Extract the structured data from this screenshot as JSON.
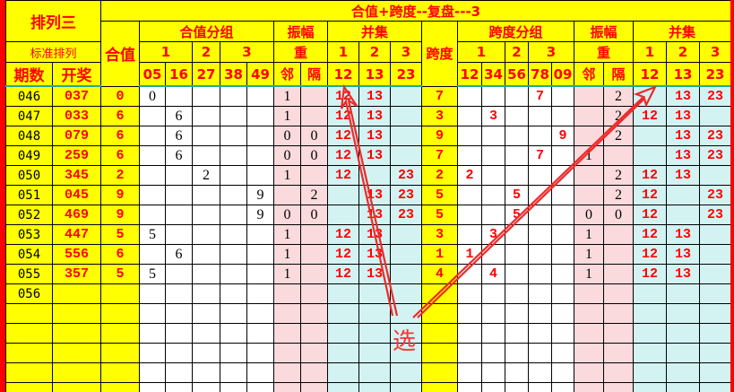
{
  "header": {
    "lottery": "排列三",
    "standard": "标准排列",
    "period": "期数",
    "draw": "开奖",
    "sum": "合值",
    "title": "合值+跨度--复盘---3",
    "sum_group": "合值分组",
    "sum_group_sub": [
      "1",
      "2",
      "3"
    ],
    "sum_group_cols": [
      "05",
      "16",
      "27",
      "38",
      "49"
    ],
    "amplitude": "振幅",
    "repeat": "重",
    "amp_cols": [
      "邻",
      "隔"
    ],
    "union": "并集",
    "union_sub": [
      "1",
      "2",
      "3"
    ],
    "union_cols": [
      "12",
      "13",
      "23"
    ],
    "span": "跨度",
    "span_group": "跨度分组",
    "span_group_sub": [
      "1",
      "2",
      "3"
    ],
    "span_group_cols": [
      "12",
      "34",
      "56",
      "78",
      "09"
    ]
  },
  "rows": [
    {
      "period": "046",
      "draw": "037",
      "sum": "0",
      "sg": [
        "0",
        "",
        "",
        "",
        ""
      ],
      "amp": [
        "1",
        ""
      ],
      "un": [
        "12",
        "13",
        ""
      ],
      "span": "7",
      "spg": [
        "",
        "",
        "",
        "7",
        ""
      ],
      "amp2": [
        "",
        "2"
      ],
      "un2": [
        "",
        "13",
        "23"
      ]
    },
    {
      "period": "047",
      "draw": "033",
      "sum": "6",
      "sg": [
        "",
        "6",
        "",
        "",
        ""
      ],
      "amp": [
        "1",
        ""
      ],
      "un": [
        "12",
        "13",
        ""
      ],
      "span": "3",
      "spg": [
        "",
        "3",
        "",
        "",
        ""
      ],
      "amp2": [
        "",
        "2"
      ],
      "un2": [
        "12",
        "13",
        ""
      ]
    },
    {
      "period": "048",
      "draw": "079",
      "sum": "6",
      "sg": [
        "",
        "6",
        "",
        "",
        ""
      ],
      "amp": [
        "0",
        "0"
      ],
      "un": [
        "12",
        "13",
        ""
      ],
      "span": "9",
      "spg": [
        "",
        "",
        "",
        "",
        "9"
      ],
      "amp2": [
        "",
        "2"
      ],
      "un2": [
        "",
        "13",
        "23"
      ]
    },
    {
      "period": "049",
      "draw": "259",
      "sum": "6",
      "sg": [
        "",
        "6",
        "",
        "",
        ""
      ],
      "amp": [
        "0",
        "0"
      ],
      "un": [
        "12",
        "13",
        ""
      ],
      "span": "7",
      "spg": [
        "",
        "",
        "",
        "7",
        ""
      ],
      "amp2": [
        "1",
        ""
      ],
      "un2": [
        "",
        "13",
        "23"
      ]
    },
    {
      "period": "050",
      "draw": "345",
      "sum": "2",
      "sg": [
        "",
        "",
        "2",
        "",
        ""
      ],
      "amp": [
        "1",
        ""
      ],
      "un": [
        "12",
        "",
        "23"
      ],
      "span": "2",
      "spg": [
        "2",
        "",
        "",
        "",
        ""
      ],
      "amp2": [
        "",
        "2"
      ],
      "un2": [
        "12",
        "13",
        ""
      ]
    },
    {
      "period": "051",
      "draw": "045",
      "sum": "9",
      "sg": [
        "",
        "",
        "",
        "",
        "9"
      ],
      "amp": [
        "",
        "2"
      ],
      "un": [
        "",
        "13",
        "23"
      ],
      "span": "5",
      "spg": [
        "",
        "",
        "5",
        "",
        ""
      ],
      "amp2": [
        "",
        "2"
      ],
      "un2": [
        "12",
        "",
        "23"
      ]
    },
    {
      "period": "052",
      "draw": "469",
      "sum": "9",
      "sg": [
        "",
        "",
        "",
        "",
        "9"
      ],
      "amp": [
        "0",
        "0"
      ],
      "un": [
        "",
        "13",
        "23"
      ],
      "span": "5",
      "spg": [
        "",
        "",
        "5",
        "",
        ""
      ],
      "amp2": [
        "0",
        "0"
      ],
      "un2": [
        "12",
        "",
        "23"
      ]
    },
    {
      "period": "053",
      "draw": "447",
      "sum": "5",
      "sg": [
        "5",
        "",
        "",
        "",
        ""
      ],
      "amp": [
        "1",
        ""
      ],
      "un": [
        "12",
        "13",
        ""
      ],
      "span": "3",
      "spg": [
        "",
        "3",
        "",
        "",
        ""
      ],
      "amp2": [
        "1",
        ""
      ],
      "un2": [
        "12",
        "13",
        ""
      ]
    },
    {
      "period": "054",
      "draw": "556",
      "sum": "6",
      "sg": [
        "",
        "6",
        "",
        "",
        ""
      ],
      "amp": [
        "1",
        ""
      ],
      "un": [
        "12",
        "13",
        ""
      ],
      "span": "1",
      "spg": [
        "1",
        "",
        "",
        "",
        ""
      ],
      "amp2": [
        "1",
        ""
      ],
      "un2": [
        "12",
        "13",
        ""
      ]
    },
    {
      "period": "055",
      "draw": "357",
      "sum": "5",
      "sg": [
        "5",
        "",
        "",
        "",
        ""
      ],
      "amp": [
        "1",
        ""
      ],
      "un": [
        "12",
        "13",
        ""
      ],
      "span": "4",
      "spg": [
        "",
        "4",
        "",
        "",
        ""
      ],
      "amp2": [
        "1",
        ""
      ],
      "un2": [
        "12",
        "13",
        ""
      ]
    },
    {
      "period": "056",
      "draw": "",
      "sum": "",
      "sg": [
        "",
        "",
        "",
        "",
        ""
      ],
      "amp": [
        "",
        ""
      ],
      "un": [
        "",
        "",
        ""
      ],
      "span": "",
      "spg": [
        "",
        "",
        "",
        "",
        ""
      ],
      "amp2": [
        "",
        ""
      ],
      "un2": [
        "",
        "",
        ""
      ]
    }
  ],
  "empty_rows": 5,
  "annotation": {
    "label": "选",
    "color": "#ff3333"
  },
  "colors": {
    "header": "#ffff00",
    "text": "#ff0000",
    "amplitude_bg": "#fadadd",
    "union_bg": "#d3f3f3",
    "frame": "#ff0000"
  }
}
